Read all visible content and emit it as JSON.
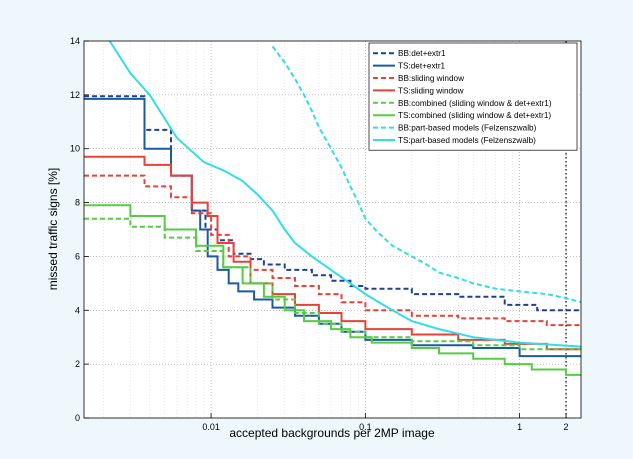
{
  "chart_data": {
    "type": "line",
    "title": "",
    "xlabel": "accepted backgrounds per 2MP image",
    "ylabel": "missed traffic signs [%]",
    "x_scale": "log",
    "xlim": [
      0.0015,
      2.5
    ],
    "ylim": [
      0,
      14
    ],
    "x_ticks": [
      0.01,
      0.1,
      1,
      2
    ],
    "x_tick_labels": [
      "0.01",
      "0.1",
      "1",
      "2"
    ],
    "y_ticks": [
      0,
      2,
      4,
      6,
      8,
      10,
      12,
      14
    ],
    "y_tick_labels": [
      "0",
      "2",
      "4",
      "6",
      "8",
      "10",
      "12",
      "14"
    ],
    "grid": true,
    "legend_position": "top-right",
    "reference_line_x": 2,
    "series": [
      {
        "name": "BB:det+extr1",
        "color": "#1f3f99",
        "style": "dashed",
        "x": [
          0.0015,
          0.0037,
          0.0037,
          0.0055,
          0.0055,
          0.0075,
          0.0075,
          0.0092,
          0.0092,
          0.011,
          0.011,
          0.014,
          0.014,
          0.018,
          0.018,
          0.022,
          0.022,
          0.03,
          0.03,
          0.045,
          0.045,
          0.06,
          0.06,
          0.08,
          0.08,
          0.1,
          0.1,
          0.2,
          0.2,
          0.4,
          0.4,
          0.8,
          0.8,
          1.3,
          1.3,
          2.5
        ],
        "y": [
          11.95,
          11.95,
          10.7,
          10.7,
          9.0,
          9.0,
          7.7,
          7.7,
          7.0,
          7.0,
          6.6,
          6.6,
          6.1,
          6.1,
          5.9,
          5.9,
          5.7,
          5.7,
          5.5,
          5.5,
          5.3,
          5.3,
          5.1,
          5.1,
          4.9,
          4.9,
          4.8,
          4.8,
          4.6,
          4.6,
          4.5,
          4.5,
          4.2,
          4.2,
          4.0,
          4.0
        ]
      },
      {
        "name": "TS:det+extr1",
        "color": "#1a5ba0",
        "style": "solid",
        "x": [
          0.0015,
          0.0037,
          0.0037,
          0.0055,
          0.0055,
          0.0075,
          0.0075,
          0.0085,
          0.0085,
          0.0095,
          0.0095,
          0.011,
          0.011,
          0.013,
          0.013,
          0.015,
          0.015,
          0.019,
          0.019,
          0.025,
          0.025,
          0.035,
          0.035,
          0.05,
          0.05,
          0.07,
          0.07,
          0.1,
          0.1,
          0.2,
          0.2,
          0.5,
          0.5,
          1.0,
          1.0,
          2.5
        ],
        "y": [
          11.85,
          11.85,
          10.0,
          10.0,
          9.0,
          9.0,
          7.7,
          7.7,
          7.0,
          7.0,
          6.0,
          6.0,
          5.5,
          5.5,
          5.0,
          5.0,
          4.7,
          4.7,
          4.4,
          4.4,
          4.1,
          4.1,
          3.8,
          3.8,
          3.5,
          3.5,
          3.2,
          3.2,
          2.9,
          2.9,
          2.7,
          2.7,
          2.6,
          2.6,
          2.3,
          2.3
        ]
      },
      {
        "name": "BB:sliding window",
        "color": "#e8413a",
        "style": "dashed",
        "x": [
          0.0015,
          0.0037,
          0.0037,
          0.0055,
          0.0055,
          0.0075,
          0.0075,
          0.01,
          0.01,
          0.013,
          0.013,
          0.018,
          0.018,
          0.025,
          0.025,
          0.035,
          0.035,
          0.05,
          0.05,
          0.07,
          0.07,
          0.1,
          0.1,
          0.2,
          0.2,
          0.4,
          0.4,
          0.8,
          0.8,
          1.5,
          1.5,
          2.5
        ],
        "y": [
          9.0,
          9.0,
          8.6,
          8.6,
          8.2,
          8.2,
          7.6,
          7.6,
          6.8,
          6.8,
          6.0,
          6.0,
          5.5,
          5.5,
          5.2,
          5.2,
          4.9,
          4.9,
          4.6,
          4.6,
          4.3,
          4.3,
          4.0,
          4.0,
          3.8,
          3.8,
          3.7,
          3.7,
          3.6,
          3.6,
          3.45,
          3.45
        ]
      },
      {
        "name": "TS:sliding window",
        "color": "#e8413a",
        "style": "solid",
        "x": [
          0.0015,
          0.0037,
          0.0037,
          0.0055,
          0.0055,
          0.0075,
          0.0075,
          0.0095,
          0.0095,
          0.011,
          0.011,
          0.014,
          0.014,
          0.018,
          0.018,
          0.025,
          0.025,
          0.035,
          0.035,
          0.05,
          0.05,
          0.07,
          0.07,
          0.1,
          0.1,
          0.2,
          0.2,
          0.4,
          0.4,
          0.8,
          0.8,
          1.5,
          1.5,
          2.5
        ],
        "y": [
          9.7,
          9.7,
          9.4,
          9.4,
          9.0,
          9.0,
          8.0,
          8.0,
          7.5,
          7.5,
          6.5,
          6.5,
          5.8,
          5.8,
          5.0,
          5.0,
          4.6,
          4.6,
          4.2,
          4.2,
          3.9,
          3.9,
          3.6,
          3.6,
          3.3,
          3.3,
          3.1,
          3.1,
          2.9,
          2.9,
          2.75,
          2.75,
          2.55,
          2.55
        ]
      },
      {
        "name": "BB:combined (sliding window & det+extr1)",
        "color": "#55cc44",
        "style": "dashed",
        "x": [
          0.0015,
          0.003,
          0.003,
          0.005,
          0.005,
          0.008,
          0.008,
          0.012,
          0.012,
          0.018,
          0.018,
          0.025,
          0.025,
          0.035,
          0.035,
          0.05,
          0.05,
          0.07,
          0.07,
          0.1,
          0.1,
          0.2,
          0.2,
          0.5,
          0.5,
          1.0,
          1.0,
          2.5
        ],
        "y": [
          7.4,
          7.4,
          7.1,
          7.1,
          6.7,
          6.7,
          6.2,
          6.2,
          5.6,
          5.6,
          5.0,
          5.0,
          4.4,
          4.4,
          3.9,
          3.9,
          3.5,
          3.5,
          3.2,
          3.2,
          3.0,
          3.0,
          2.85,
          2.85,
          2.7,
          2.7,
          2.55,
          2.55
        ]
      },
      {
        "name": "TS:combined (sliding window & det+extr1)",
        "color": "#55cc44",
        "style": "solid",
        "x": [
          0.0015,
          0.003,
          0.003,
          0.005,
          0.005,
          0.008,
          0.008,
          0.012,
          0.012,
          0.016,
          0.016,
          0.022,
          0.022,
          0.03,
          0.03,
          0.04,
          0.04,
          0.06,
          0.06,
          0.08,
          0.08,
          0.11,
          0.11,
          0.2,
          0.2,
          0.3,
          0.3,
          0.5,
          0.5,
          0.8,
          0.8,
          1.2,
          1.2,
          2.0,
          2.0,
          2.5
        ],
        "y": [
          7.9,
          7.9,
          7.5,
          7.5,
          7.0,
          7.0,
          6.4,
          6.4,
          5.6,
          5.6,
          5.0,
          5.0,
          4.5,
          4.5,
          4.0,
          4.0,
          3.6,
          3.6,
          3.3,
          3.3,
          3.0,
          3.0,
          2.8,
          2.8,
          2.6,
          2.6,
          2.4,
          2.4,
          2.2,
          2.2,
          2.0,
          2.0,
          1.8,
          1.8,
          1.6,
          1.6
        ]
      },
      {
        "name": "BB:part-based models (Felzenszwalb)",
        "color": "#33dde8",
        "style": "dashed",
        "x": [
          0.025,
          0.03,
          0.035,
          0.04,
          0.045,
          0.05,
          0.06,
          0.07,
          0.08,
          0.09,
          0.1,
          0.12,
          0.15,
          0.2,
          0.25,
          0.3,
          0.4,
          0.5,
          0.7,
          1.0,
          1.5,
          2.0,
          2.5
        ],
        "y": [
          13.8,
          13.2,
          12.6,
          12.0,
          11.4,
          10.8,
          10.0,
          9.3,
          8.6,
          8.0,
          7.4,
          6.9,
          6.4,
          6.0,
          5.7,
          5.4,
          5.2,
          5.0,
          4.8,
          4.7,
          4.6,
          4.45,
          4.3
        ]
      },
      {
        "name": "TS:part-based models (Felzenszwalb)",
        "color": "#33dde8",
        "style": "solid",
        "x": [
          0.0022,
          0.0022,
          0.003,
          0.003,
          0.004,
          0.004,
          0.006,
          0.006,
          0.009,
          0.009,
          0.012,
          0.012,
          0.016,
          0.016,
          0.02,
          0.02,
          0.025,
          0.025,
          0.03,
          0.03,
          0.035,
          0.035,
          0.045,
          0.045,
          0.06,
          0.06,
          0.08,
          0.08,
          0.1,
          0.1,
          0.15,
          0.15,
          0.2,
          0.2,
          0.3,
          0.3,
          0.5,
          0.5,
          1.0,
          1.0,
          2.5
        ],
        "y": [
          14,
          14,
          12.8,
          12.8,
          12.0,
          12.0,
          10.4,
          10.4,
          9.5,
          9.5,
          9.2,
          9.2,
          8.8,
          8.8,
          8.3,
          8.3,
          7.7,
          7.7,
          7.0,
          7.0,
          6.5,
          6.5,
          6.0,
          6.0,
          5.5,
          5.5,
          5.0,
          5.0,
          4.6,
          4.6,
          4.0,
          4.0,
          3.6,
          3.6,
          3.3,
          3.3,
          3.0,
          3.0,
          2.8,
          2.8,
          2.65
        ]
      }
    ]
  }
}
